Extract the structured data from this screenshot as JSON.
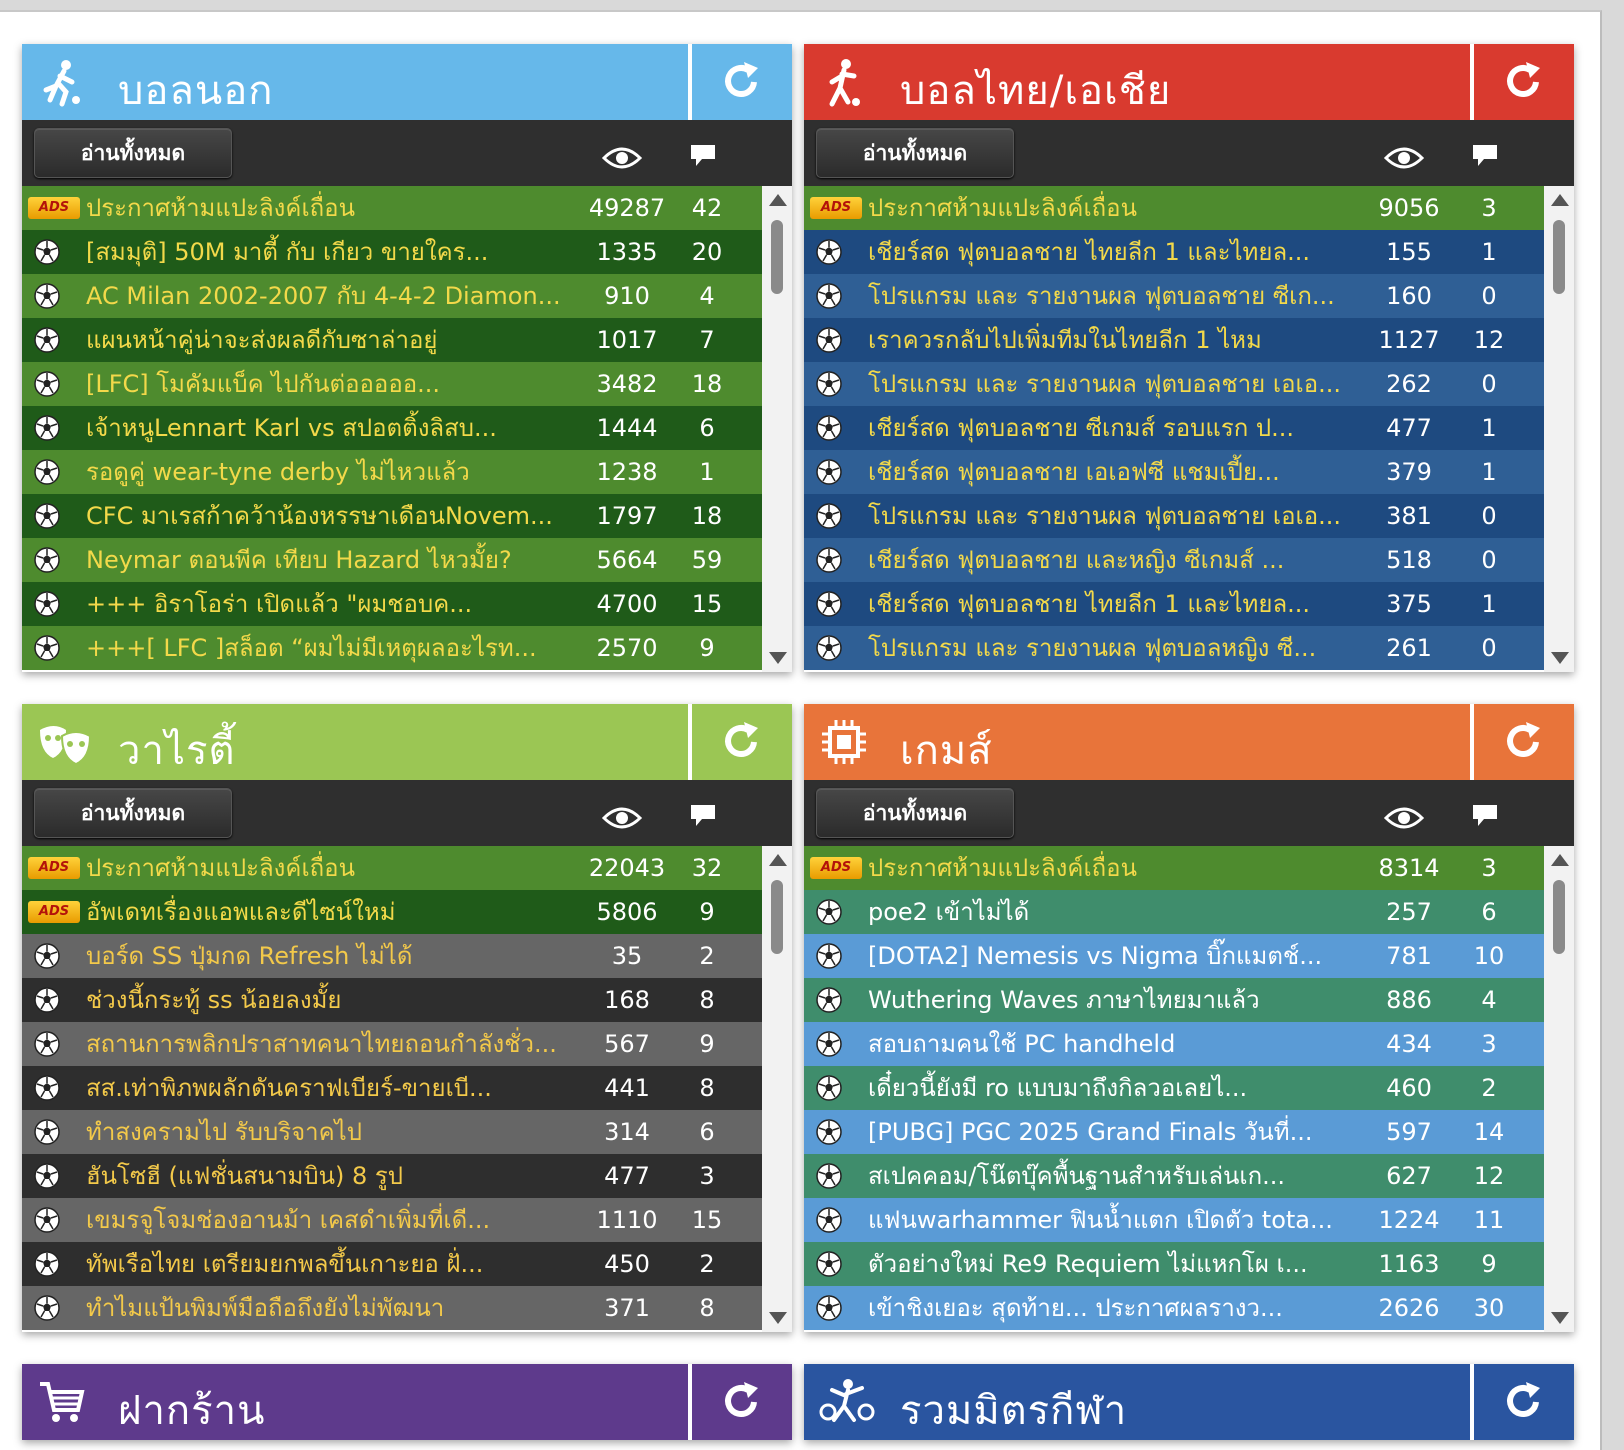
{
  "read_all_label": "อ่านทั้งหมด",
  "panels": [
    {
      "title": "บอลนอก",
      "color": "#66b8ea",
      "icon": "soccer-player-icon",
      "rows": [
        {
          "ad": true,
          "title": "ประกาศห้ามแปะลิงค์เถื่อน",
          "views": "49287",
          "comments": "42"
        },
        {
          "title": "[สมมุติ] 50M มาตี้ กับ เกียว ขายใคร...",
          "views": "1335",
          "comments": "20"
        },
        {
          "title": "AC Milan 2002-2007 กับ 4-4-2 Diamon...",
          "views": "910",
          "comments": "4"
        },
        {
          "title": "แผนหน้าคู่น่าจะส่งผลดีกับซาล่าอยู่",
          "views": "1017",
          "comments": "7"
        },
        {
          "title": "[LFC] โมคัมแบ็ค ไปกันต่อออออ...",
          "views": "3482",
          "comments": "18"
        },
        {
          "title": "เจ้าหนูLennart Karl vs สปอตติ้งลิสบ...",
          "views": "1444",
          "comments": "6"
        },
        {
          "title": "รอดูคู่ wear-tyne derby ไม่ไหวแล้ว",
          "views": "1238",
          "comments": "1"
        },
        {
          "title": "CFC มาเรสก้าคว้าน้องหรรษาเดือนNovem...",
          "views": "1797",
          "comments": "18"
        },
        {
          "title": "Neymar ตอนพีค เทียบ Hazard ไหวมั้ย?",
          "views": "5664",
          "comments": "59"
        },
        {
          "title": "+++ อิราโอร่า เปิดแล้ว \"ผมชอบค...",
          "views": "4700",
          "comments": "15"
        },
        {
          "title": "+++[ LFC ]สล็อต “ผมไม่มีเหตุผลอะไรท...",
          "views": "2570",
          "comments": "9"
        }
      ]
    },
    {
      "title": "บอลไทย/เอเชีย",
      "color": "#d93a2f",
      "icon": "soccer-kick-icon",
      "rows": [
        {
          "ad": true,
          "title": "ประกาศห้ามแปะลิงค์เถื่อน",
          "views": "9056",
          "comments": "3"
        },
        {
          "title": "เชียร์สด ฟุตบอลชาย ไทยลีก 1 และไทยล...",
          "views": "155",
          "comments": "1"
        },
        {
          "title": "โปรแกรม และ รายงานผล ฟุตบอลชาย ซีเก...",
          "views": "160",
          "comments": "0"
        },
        {
          "title": "เราควรกลับไปเพิ่มทีมในไทยลีก 1 ไหม",
          "views": "1127",
          "comments": "12"
        },
        {
          "title": "โปรแกรม และ รายงานผล ฟุตบอลชาย เอเอ...",
          "views": "262",
          "comments": "0"
        },
        {
          "title": "เชียร์สด ฟุตบอลชาย ซีเกมส์ รอบแรก ป...",
          "views": "477",
          "comments": "1"
        },
        {
          "title": "เชียร์สด ฟุตบอลชาย เอเอฟซี แชมเปี้ย...",
          "views": "379",
          "comments": "1"
        },
        {
          "title": "โปรแกรม และ รายงานผล ฟุตบอลชาย เอเอ...",
          "views": "381",
          "comments": "0"
        },
        {
          "title": "เชียร์สด ฟุตบอลชาย และหญิง ซีเกมส์ ...",
          "views": "518",
          "comments": "0"
        },
        {
          "title": "เชียร์สด ฟุตบอลชาย ไทยลีก 1 และไทยล...",
          "views": "375",
          "comments": "1"
        },
        {
          "title": "โปรแกรม และ รายงานผล ฟุตบอลหญิง ซี...",
          "views": "261",
          "comments": "0"
        }
      ]
    },
    {
      "title": "วาไรตี้",
      "color": "#9bc654",
      "icon": "theater-masks-icon",
      "rows": [
        {
          "ad": true,
          "title": "ประกาศห้ามแปะลิงค์เถื่อน",
          "views": "22043",
          "comments": "32"
        },
        {
          "ad": true,
          "title": "อัพเดทเรื่องแอพและดีไซน์ใหม่",
          "views": "5806",
          "comments": "9"
        },
        {
          "title": "บอร์ด SS ปุ่มกด Refresh ไม่ได้",
          "views": "35",
          "comments": "2"
        },
        {
          "title": "ช่วงนี้กระทู้ ss น้อยลงมั้ย",
          "views": "168",
          "comments": "8"
        },
        {
          "title": "สถานการพลิกปราสาทคนาไทยถอนกำลังชั่ว...",
          "views": "567",
          "comments": "9"
        },
        {
          "title": "สส.เท่าพิภพผลักดันคราฟเบียร์-ขายเบี...",
          "views": "441",
          "comments": "8"
        },
        {
          "title": "ทำสงครามไป รับบริจาคไป",
          "views": "314",
          "comments": "6"
        },
        {
          "title": "ฮันโซฮี (แฟชั่นสนามบิน) 8 รูป",
          "views": "477",
          "comments": "3"
        },
        {
          "title": "เขมรจูโจมช่องอานม้า เคสดำเพิ่มที่เดี...",
          "views": "1110",
          "comments": "15"
        },
        {
          "title": "ทัพเรือไทย เตรียมยกพลขึ้นเกาะยอ ฝั่...",
          "views": "450",
          "comments": "2"
        },
        {
          "title": "ทำไมแป้นพิมพ์มือถือถึงยังไม่พัฒนา",
          "views": "371",
          "comments": "8"
        }
      ]
    },
    {
      "title": "เกมส์",
      "color": "#e8743a",
      "icon": "chip-icon",
      "rows": [
        {
          "ad": true,
          "title": "ประกาศห้ามแปะลิงค์เถื่อน",
          "views": "8314",
          "comments": "3"
        },
        {
          "title": "poe2 เข้าไม่ได้",
          "views": "257",
          "comments": "6"
        },
        {
          "title": "[DOTA2] Nemesis vs Nigma บิ๊กแมตช์...",
          "views": "781",
          "comments": "10"
        },
        {
          "title": "Wuthering Waves ภาษาไทยมาแล้ว",
          "views": "886",
          "comments": "4"
        },
        {
          "title": "สอบถามคนใช้ PC handheld",
          "views": "434",
          "comments": "3"
        },
        {
          "title": "เดี๋ยวนี้ยังมี ro แบบมาถึงกิลวอเลยไ...",
          "views": "460",
          "comments": "2"
        },
        {
          "title": "[PUBG] PGC 2025 Grand Finals วันที่...",
          "views": "597",
          "comments": "14"
        },
        {
          "title": "สเปคคอม/โน๊ตบุ๊คพื้นฐานสำหรับเล่นเก...",
          "views": "627",
          "comments": "12"
        },
        {
          "title": "แฟนwarhammer ฟินน้ำแตก เปิดตัว tota...",
          "views": "1224",
          "comments": "11"
        },
        {
          "title": "ตัวอย่างใหม่ Re9 Requiem ไม่แหกโผ เ...",
          "views": "1163",
          "comments": "9"
        },
        {
          "title": "เข้าชิงเยอะ สุดท้าย... ประกาศผลรางว...",
          "views": "2626",
          "comments": "30"
        }
      ]
    },
    {
      "title": "ฝากร้าน",
      "color": "#5e3a8c",
      "icon": "shopping-cart-icon"
    },
    {
      "title": "รวมมิตรกีฬา",
      "color": "#2a55a0",
      "icon": "sports-icon"
    }
  ]
}
